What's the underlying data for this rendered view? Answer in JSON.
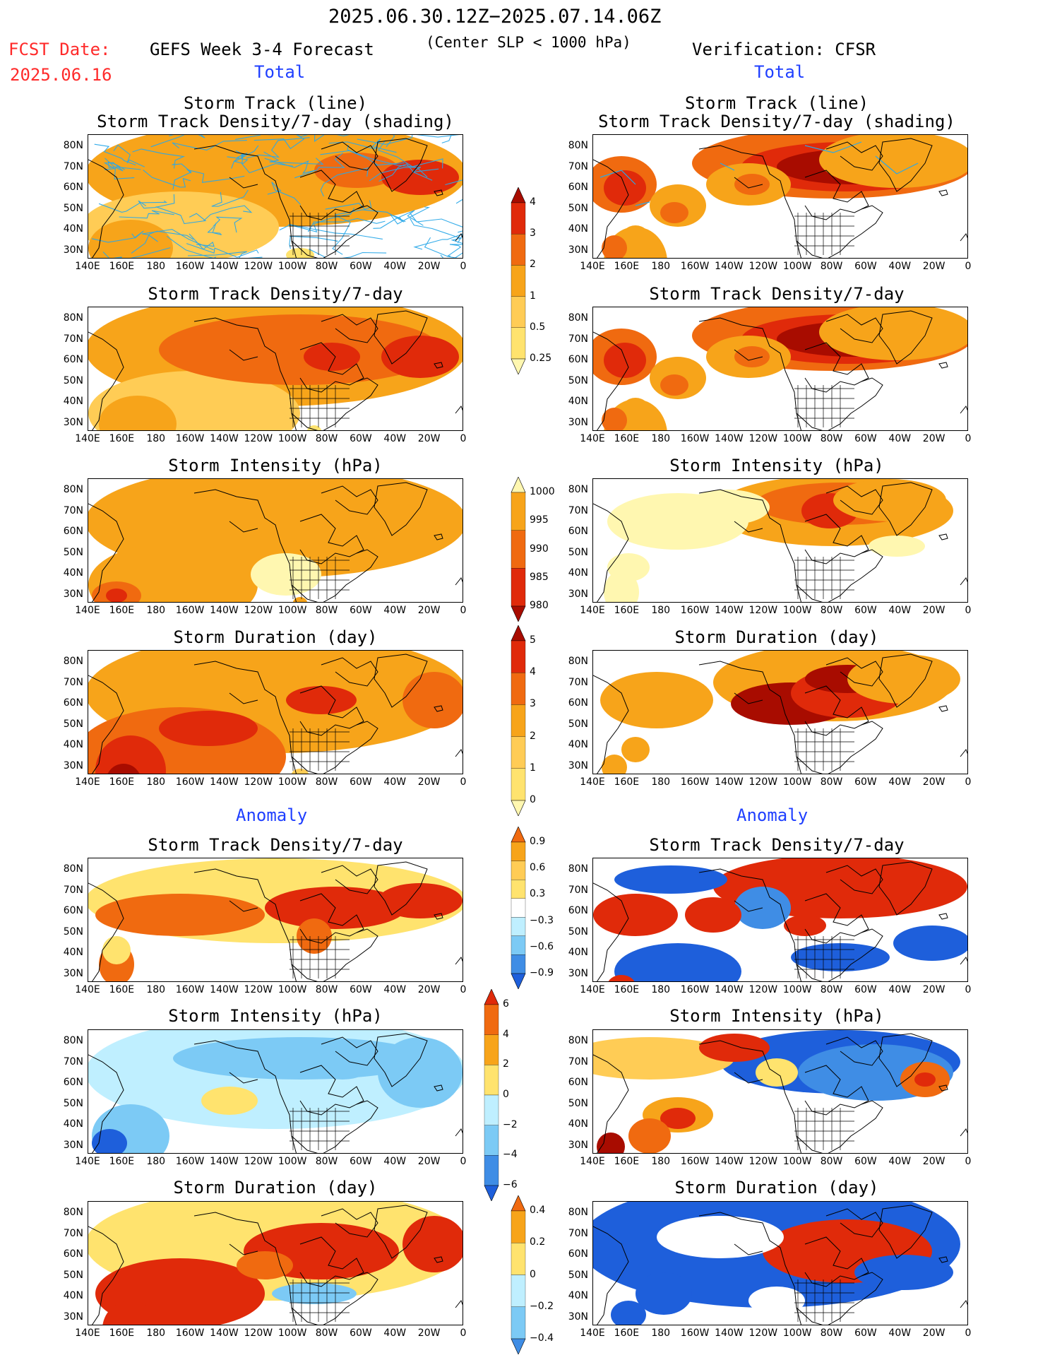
{
  "header": {
    "date_range": "2025.06.30.12Z−2025.07.14.06Z",
    "fcst_label": "FCST Date:",
    "fcst_date": "2025.06.16",
    "forecast_title": "GEFS Week 3-4 Forecast",
    "subtitle": "(Center SLP < 1000 hPa)",
    "verification_title": "Verification: CFSR",
    "total_left": "Total",
    "total_right": "Total",
    "anomaly_left": "Anomaly",
    "anomaly_right": "Anomaly"
  },
  "panel_titles": {
    "track_line": "Storm Track (line)",
    "track_density_shading": "Storm Track Density/7-day (shading)",
    "track_density": "Storm Track Density/7-day",
    "intensity": "Storm Intensity (hPa)",
    "duration": "Storm Duration (day)"
  },
  "axes": {
    "lat_labels": [
      "80N",
      "70N",
      "60N",
      "50N",
      "40N",
      "30N"
    ],
    "lon_labels": [
      "140E",
      "160E",
      "180",
      "160W",
      "140W",
      "120W",
      "100W",
      "80W",
      "60W",
      "40W",
      "20W",
      "0"
    ]
  },
  "colorbars": {
    "density_total": [
      "4",
      "3",
      "2",
      "1",
      "0.5",
      "0.25"
    ],
    "intensity_total": [
      "1000",
      "995",
      "990",
      "985",
      "980"
    ],
    "duration_total": [
      "5",
      "4",
      "3",
      "2",
      "1",
      "0"
    ],
    "density_anom": [
      "0.9",
      "0.6",
      "0.3",
      "−0.3",
      "−0.6",
      "−0.9"
    ],
    "intensity_anom": [
      "6",
      "4",
      "2",
      "0",
      "−2",
      "−4",
      "−6"
    ],
    "duration_anom": [
      "0.4",
      "0.2",
      "0",
      "−0.2",
      "−0.4"
    ]
  },
  "colors": {
    "pale": "#fff7b0",
    "lightyellow": "#ffe36e",
    "lightorange": "#ffcc55",
    "orange": "#f7a41a",
    "darkorange": "#f06a10",
    "red": "#e02a0a",
    "darkred": "#a80c00",
    "lightblue": "#bfefff",
    "midblue": "#7ccaf5",
    "blue": "#3f8de5",
    "darkblue": "#1e5fdb",
    "track": "#2aa8e8",
    "title_red": "#ff2a2a",
    "title_blue": "#1f3fff"
  }
}
